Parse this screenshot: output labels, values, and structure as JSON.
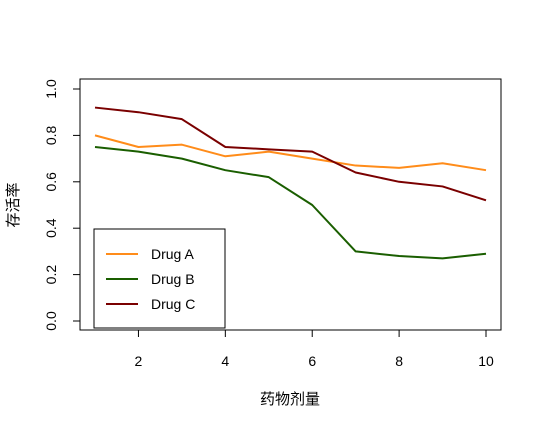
{
  "chart_data": {
    "type": "line",
    "title": "",
    "xlabel": "药物剂量",
    "ylabel": "存活率",
    "x": [
      1,
      2,
      3,
      4,
      5,
      6,
      7,
      8,
      9,
      10
    ],
    "xlim": [
      1,
      10
    ],
    "ylim": [
      0,
      1
    ],
    "x_ticks": [
      2,
      4,
      6,
      8,
      10
    ],
    "y_ticks": [
      0,
      0.2,
      0.4,
      0.6,
      0.8,
      1
    ],
    "x_tick_labels": [
      "2",
      "4",
      "6",
      "8",
      "10"
    ],
    "y_tick_labels": [
      "0.0",
      "0.2",
      "0.4",
      "0.6",
      "0.8",
      "1.0"
    ],
    "grid": false,
    "legend_position": "bottom-left",
    "series": [
      {
        "name": "Drug A",
        "color": "#FF8C1A",
        "values": [
          0.8,
          0.75,
          0.76,
          0.71,
          0.73,
          0.7,
          0.67,
          0.66,
          0.68,
          0.65
        ]
      },
      {
        "name": "Drug B",
        "color": "#1A5E00",
        "values": [
          0.75,
          0.73,
          0.7,
          0.65,
          0.62,
          0.5,
          0.3,
          0.28,
          0.27,
          0.29
        ]
      },
      {
        "name": "Drug C",
        "color": "#7A0000",
        "values": [
          0.92,
          0.9,
          0.87,
          0.75,
          0.74,
          0.73,
          0.64,
          0.6,
          0.58,
          0.52
        ]
      }
    ]
  }
}
